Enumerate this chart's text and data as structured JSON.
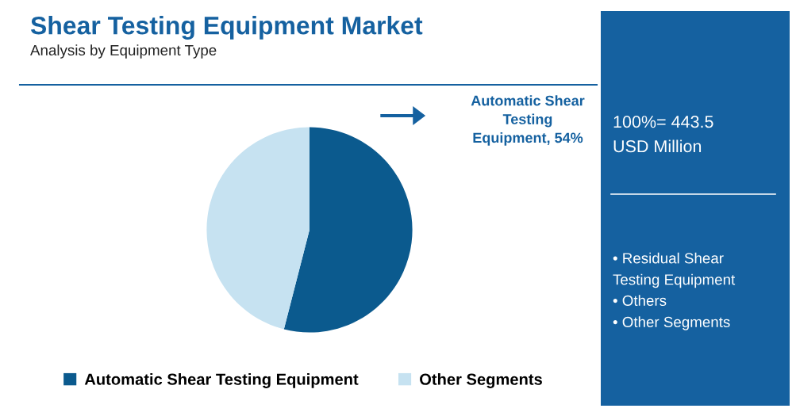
{
  "chart_data": {
    "type": "pie",
    "title": "Shear Testing Equipment Market",
    "subtitle": "Analysis by Equipment Type",
    "categories": [
      "Automatic Shear Testing Equipment",
      "Other Segments"
    ],
    "values": [
      54,
      46
    ],
    "colors": [
      "#0b5a8e",
      "#c6e2f1"
    ],
    "value_labels": [
      "Automatic Shear\nTesting\nEquipment, 54%",
      null
    ],
    "legend": "bottom",
    "annotations": [
      "100%= 443.5\nUSD Million",
      "• Residual Shear\nTesting Equipment",
      "• Others",
      "• Other Segments"
    ]
  }
}
